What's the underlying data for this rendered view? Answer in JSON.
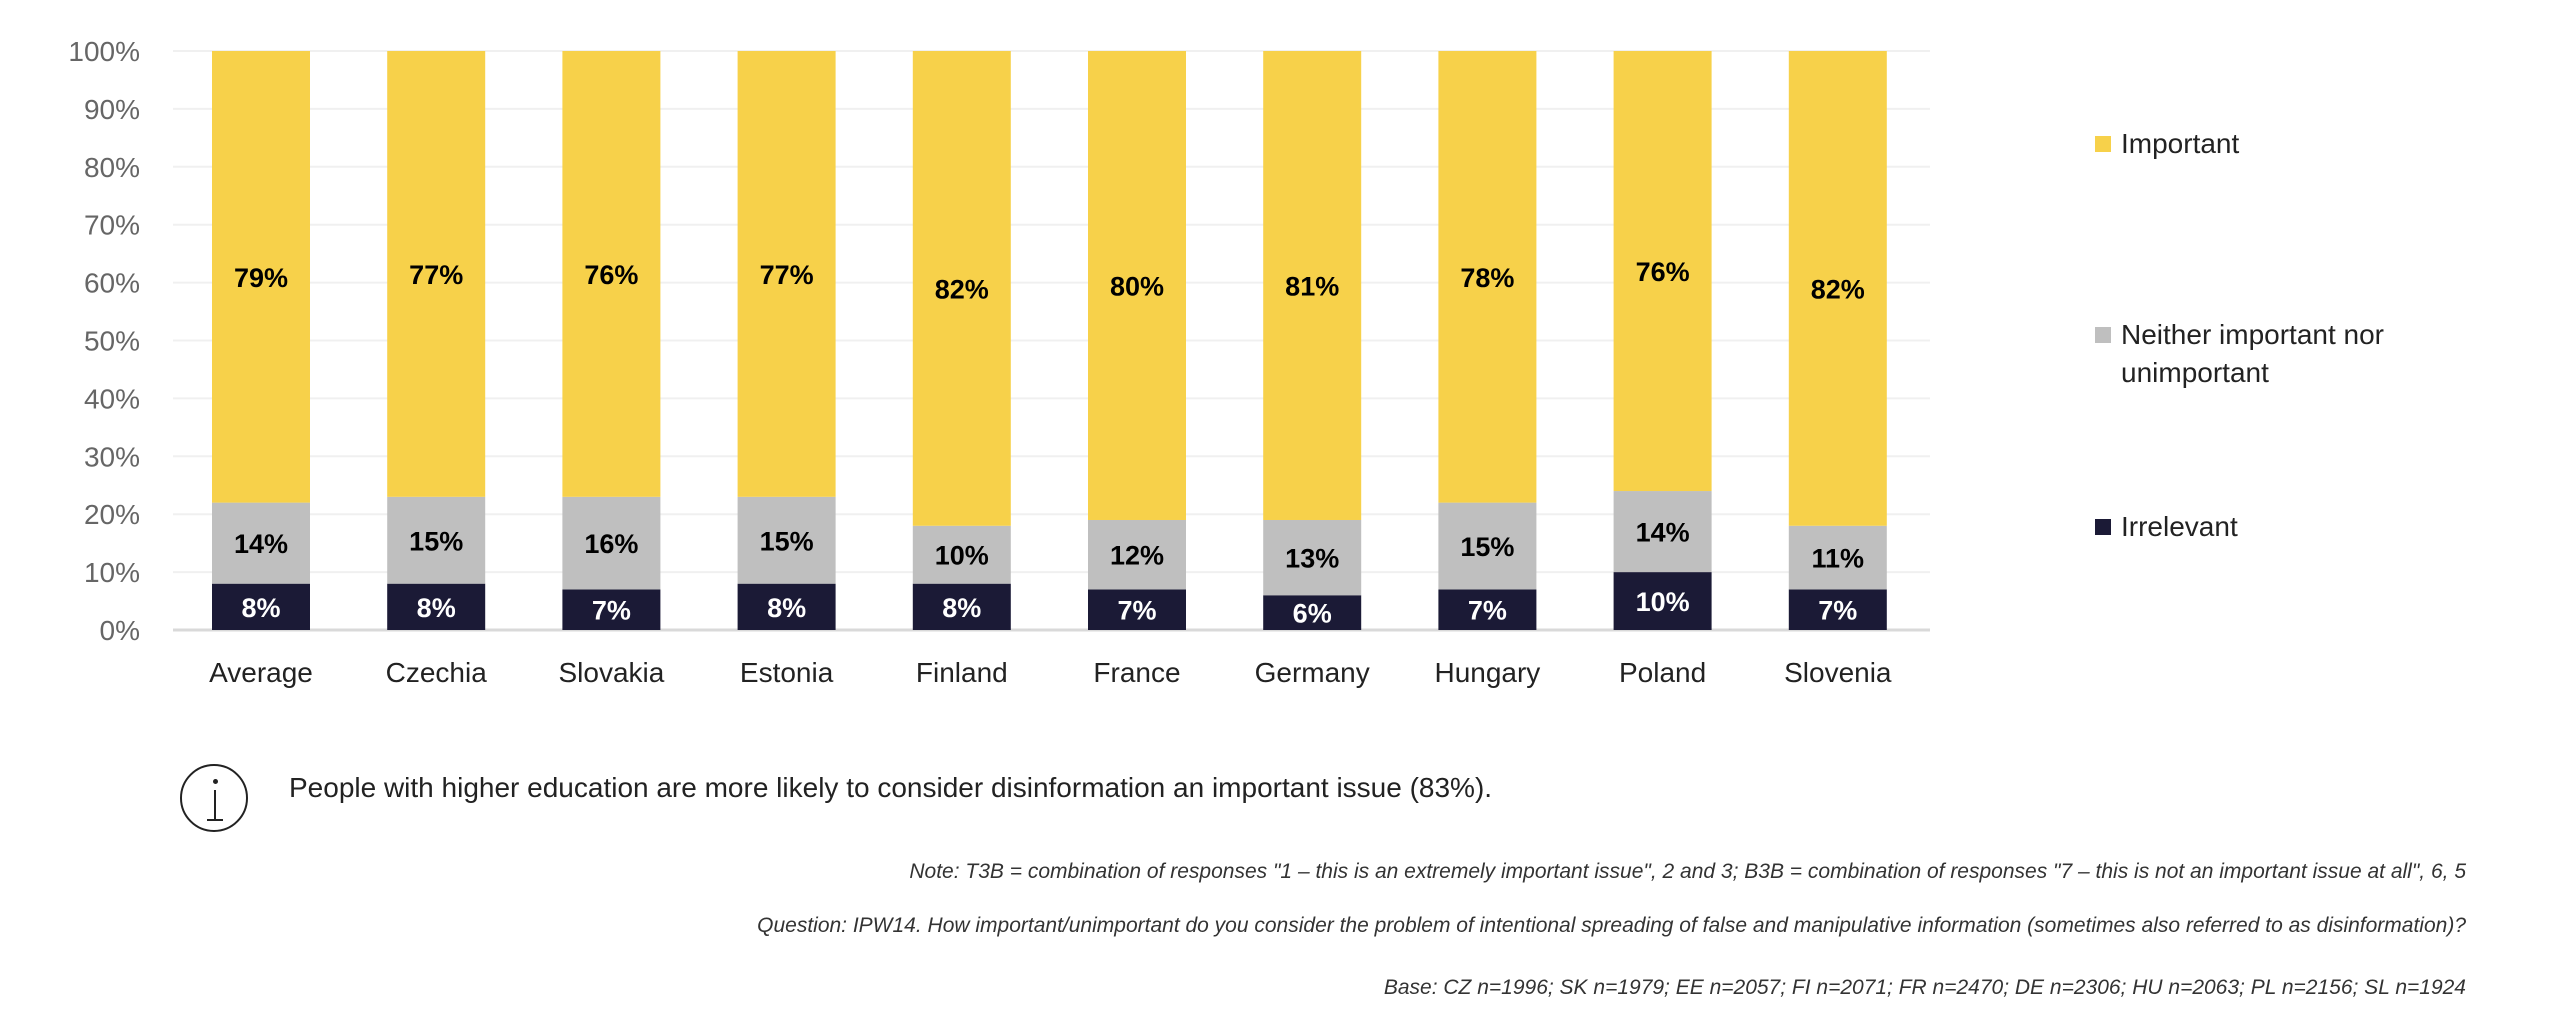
{
  "chart_data": {
    "type": "bar",
    "stacked": true,
    "categories": [
      "Average",
      "Czechia",
      "Slovakia",
      "Estonia",
      "Finland",
      "France",
      "Germany",
      "Hungary",
      "Poland",
      "Slovenia"
    ],
    "series": [
      {
        "name": "Irrelevant",
        "color": "#1B1A36",
        "label_color": "#ffffff",
        "values": [
          8,
          8,
          7,
          8,
          8,
          7,
          6,
          7,
          10,
          7
        ]
      },
      {
        "name": "Neither important nor unimportant",
        "color": "#BFBFBF",
        "label_color": "#000000",
        "values": [
          14,
          15,
          16,
          15,
          10,
          12,
          13,
          15,
          14,
          11
        ]
      },
      {
        "name": "Important",
        "color": "#F7D14A",
        "label_color": "#000000",
        "values": [
          79,
          77,
          76,
          77,
          82,
          80,
          81,
          78,
          76,
          82
        ]
      }
    ],
    "yticks": [
      "0%",
      "10%",
      "20%",
      "30%",
      "40%",
      "50%",
      "60%",
      "70%",
      "80%",
      "90%",
      "100%"
    ],
    "ylim": [
      0,
      100
    ],
    "grid": true,
    "legend_position": "right"
  },
  "legend": {
    "important": "Important",
    "neither_line1": "Neither important nor",
    "neither_line2": "unimportant",
    "irrelevant": "Irrelevant"
  },
  "info": {
    "text": "People with higher education are more likely to consider disinformation an important issue (83%)."
  },
  "notes": {
    "note": "Note: T3B = combination of responses \"1 – this is an extremely important issue\", 2 and 3; B3B = combination of responses \"7 – this is not an important issue at all\", 6, 5",
    "question": "Question: IPW14. How important/unimportant do you consider the problem of intentional spreading of false and manipulative information (sometimes also referred to as disinformation)?",
    "base": "Base: CZ n=1996; SK n=1979; EE n=2057; FI n=2071; FR n=2470; DE n=2306; HU n=2063; PL n=2156; SL n=1924"
  }
}
